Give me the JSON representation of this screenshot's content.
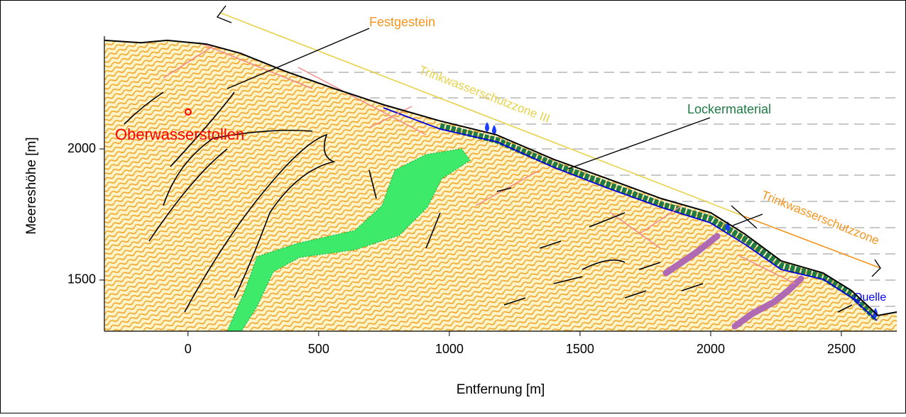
{
  "chart_data": {
    "type": "line",
    "x_label": "Entfernung [m]",
    "y_label": "Meereshöhe [m]",
    "x": [
      -320,
      -180,
      -80,
      70,
      200,
      370,
      560,
      750,
      960,
      1180,
      1400,
      1590,
      1810,
      2000,
      2130,
      2270,
      2430,
      2540,
      2640,
      2712
    ],
    "values": [
      2414,
      2405,
      2414,
      2400,
      2365,
      2297,
      2230,
      2168,
      2108,
      2054,
      1960,
      1892,
      1811,
      1757,
      1676,
      1573,
      1527,
      1459,
      1365,
      1378
    ],
    "color": "#000000",
    "xlim": [
      -320,
      2712
    ],
    "ylim": [
      1305,
      2430
    ],
    "xticks": [
      0,
      500,
      1000,
      1500,
      2000,
      2500
    ],
    "yticks": [
      1500,
      2000
    ],
    "annotations": [
      {
        "text": "Festgestein",
        "color": "#f7941d"
      },
      {
        "text": "Lockermaterial",
        "color": "#1e7b45"
      },
      {
        "text": "Trinkwasserschutzzone III",
        "color": "#e8d24a"
      },
      {
        "text": "Trinkwasserschutzzone",
        "color": "#f7941d"
      },
      {
        "text": "Oberwasserstollen",
        "color": "#ff0000"
      },
      {
        "text": "Quelle",
        "color": "#0000ff"
      }
    ]
  }
}
